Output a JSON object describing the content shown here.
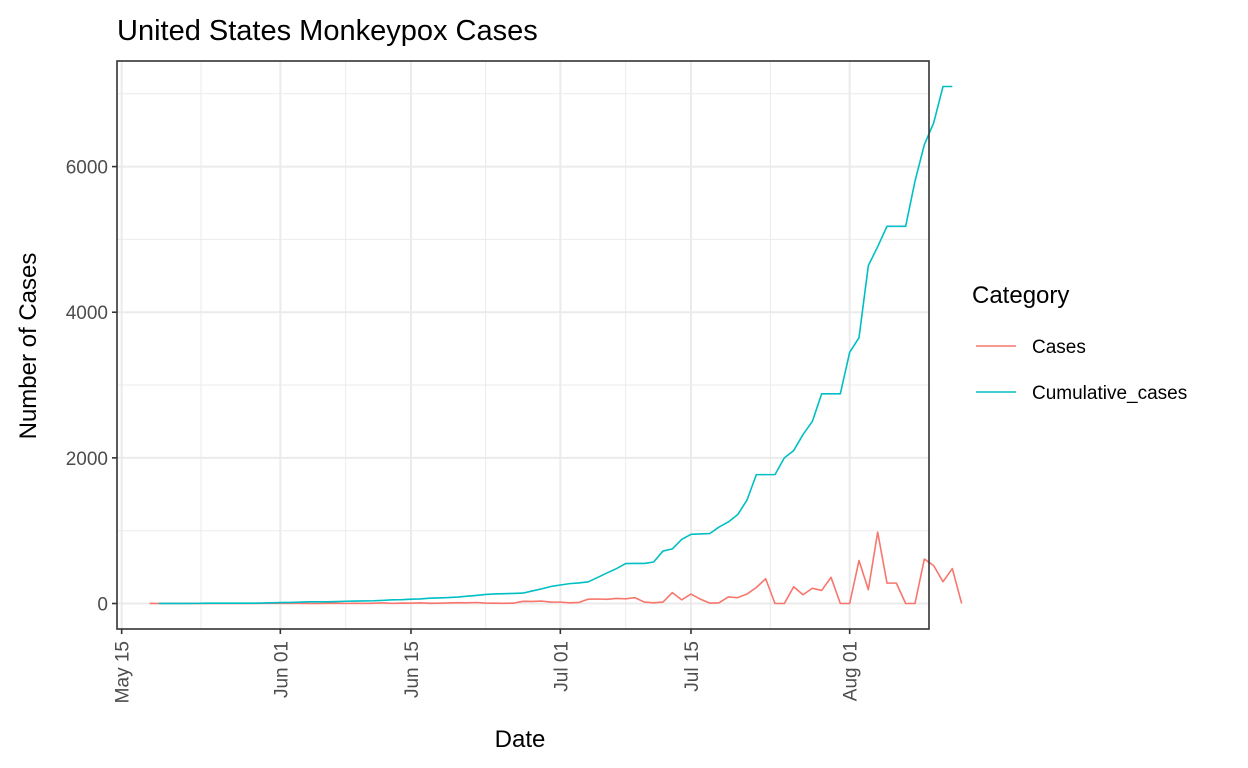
{
  "chart_data": {
    "type": "line",
    "title": "United States Monkeypox Cases",
    "xlabel": "Date",
    "ylabel": "Number of Cases",
    "x_ticks": [
      {
        "label": "May 15",
        "day": 0
      },
      {
        "label": "Jun 01",
        "day": 17
      },
      {
        "label": "Jun 15",
        "day": 31
      },
      {
        "label": "Jul 01",
        "day": 47
      },
      {
        "label": "Jul 15",
        "day": 61
      },
      {
        "label": "Aug 01",
        "day": 78
      }
    ],
    "x_range_days": [
      -0.5,
      86.5
    ],
    "x_origin": "2022-05-15",
    "y_ticks": [
      0,
      2000,
      4000,
      6000
    ],
    "ylim": [
      -350,
      7450
    ],
    "grid": true,
    "legend": {
      "title": "Category",
      "position": "right",
      "entries": [
        {
          "label": "Cases",
          "color": "#F8766D"
        },
        {
          "label": "Cumulative_cases",
          "color": "#00BFC4"
        }
      ]
    },
    "series": [
      {
        "name": "Cases",
        "color": "#F8766D",
        "start_day": 3,
        "values": [
          1,
          0,
          1,
          0,
          1,
          2,
          0,
          1,
          0,
          0,
          0,
          1,
          3,
          4,
          2,
          3,
          5,
          1,
          0,
          3,
          4,
          2,
          3,
          2,
          5,
          8,
          2,
          6,
          4,
          10,
          3,
          5,
          8,
          12,
          10,
          14,
          6,
          4,
          3,
          5,
          30,
          28,
          33,
          20,
          19,
          10,
          15,
          60,
          62,
          58,
          70,
          65,
          80,
          20,
          10,
          20,
          150,
          50,
          130,
          60,
          5,
          10,
          90,
          80,
          130,
          220,
          340,
          0,
          0,
          230,
          120,
          210,
          180,
          360,
          0,
          0,
          590,
          190,
          980,
          280,
          280,
          0,
          0,
          610,
          520,
          300,
          480,
          0
        ]
      },
      {
        "name": "Cumulative_cases",
        "color": "#00BFC4",
        "start_day": 4,
        "values": [
          1,
          1,
          1,
          1,
          2,
          4,
          4,
          5,
          5,
          5,
          5,
          6,
          9,
          13,
          15,
          18,
          23,
          24,
          24,
          27,
          31,
          33,
          36,
          38,
          43,
          51,
          53,
          59,
          63,
          73,
          76,
          81,
          89,
          101,
          111,
          125,
          131,
          135,
          138,
          143,
          173,
          201,
          234,
          254,
          273,
          283,
          298,
          358,
          420,
          478,
          548,
          550,
          550,
          570,
          720,
          750,
          880,
          950,
          955,
          960,
          1050,
          1120,
          1220,
          1420,
          1770,
          1770,
          1770,
          2000,
          2100,
          2320,
          2500,
          2880,
          2880,
          2880,
          3450,
          3650,
          4640,
          4900,
          5180,
          5180,
          5180,
          5800,
          6300,
          6600,
          7100,
          7100
        ]
      }
    ]
  }
}
